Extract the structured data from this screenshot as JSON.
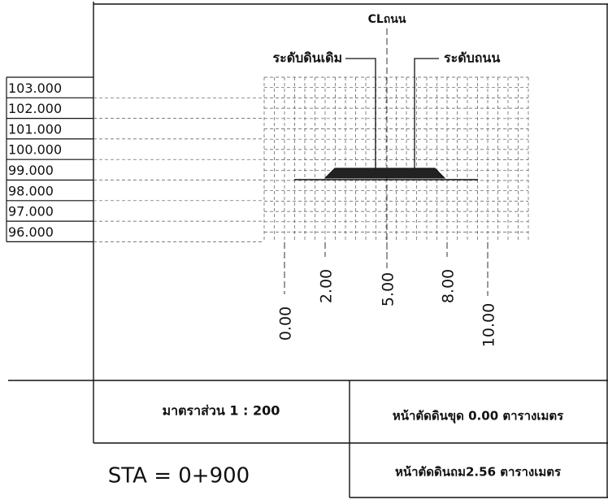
{
  "header": {
    "centerline": "CLถนน",
    "ground_label": "ระดับดินเดิม",
    "road_label": "ระดับถนน"
  },
  "elevations": [
    "103.000",
    "102.000",
    "101.000",
    "100.000",
    "99.000",
    "98.000",
    "97.000",
    "96.000"
  ],
  "offsets": [
    "0.00",
    "2.00",
    "5.00",
    "8.00",
    "10.00"
  ],
  "footer": {
    "scale": "มาตราส่วน 1 : 200",
    "cut_area": "หน้าตัดดินขุด 0.00 ตารางเมตร",
    "fill_area": "หน้าตัดดินถม2.56 ตารางเมตร",
    "station": "STA = 0+900"
  }
}
